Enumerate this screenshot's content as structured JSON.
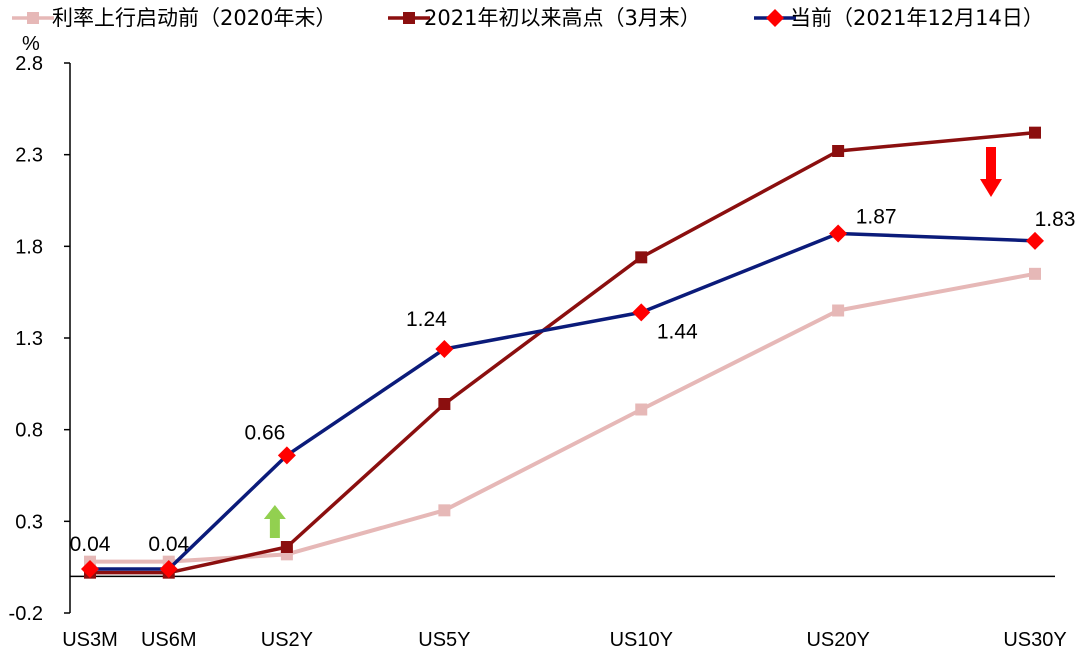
{
  "chart_data": {
    "type": "line",
    "unit": "%",
    "categories": [
      "US3M",
      "US6M",
      "US2Y",
      "US5Y",
      "US10Y",
      "US20Y",
      "US30Y"
    ],
    "x_positions": [
      0,
      0.4,
      1.0,
      1.8,
      2.8,
      3.8,
      4.8
    ],
    "ylim": [
      -0.2,
      2.8
    ],
    "yticks": [
      "2.8",
      "2.3",
      "1.8",
      "1.3",
      "0.8",
      "0.3",
      "-0.2"
    ],
    "ytick_values": [
      2.8,
      2.3,
      1.8,
      1.3,
      0.8,
      0.3,
      -0.2
    ],
    "legend_position": "top",
    "series": [
      {
        "name": "利率上行启动前（2020年末）",
        "color": "#e6b8b7",
        "marker": "square",
        "values": [
          0.08,
          0.08,
          0.12,
          0.36,
          0.91,
          1.45,
          1.65
        ]
      },
      {
        "name": "2021年初以来高点（3月末）",
        "color": "#8b0f0f",
        "marker": "square",
        "values": [
          0.02,
          0.02,
          0.16,
          0.94,
          1.74,
          2.32,
          2.42
        ]
      },
      {
        "name": "当前（2021年12月14日）",
        "color": "#0b1b7a",
        "marker": "diamond",
        "marker_color": "#ff0000",
        "values": [
          0.04,
          0.04,
          0.66,
          1.24,
          1.44,
          1.87,
          1.83
        ],
        "labels": [
          "0.04",
          "0.04",
          "0.66",
          "1.24",
          "1.44",
          "1.87",
          "1.83"
        ]
      }
    ],
    "annotations": [
      {
        "type": "arrow-up",
        "color": "#92d050",
        "near": "US2Y"
      },
      {
        "type": "arrow-down",
        "color": "#ff0000",
        "near": "US30Y"
      }
    ]
  }
}
